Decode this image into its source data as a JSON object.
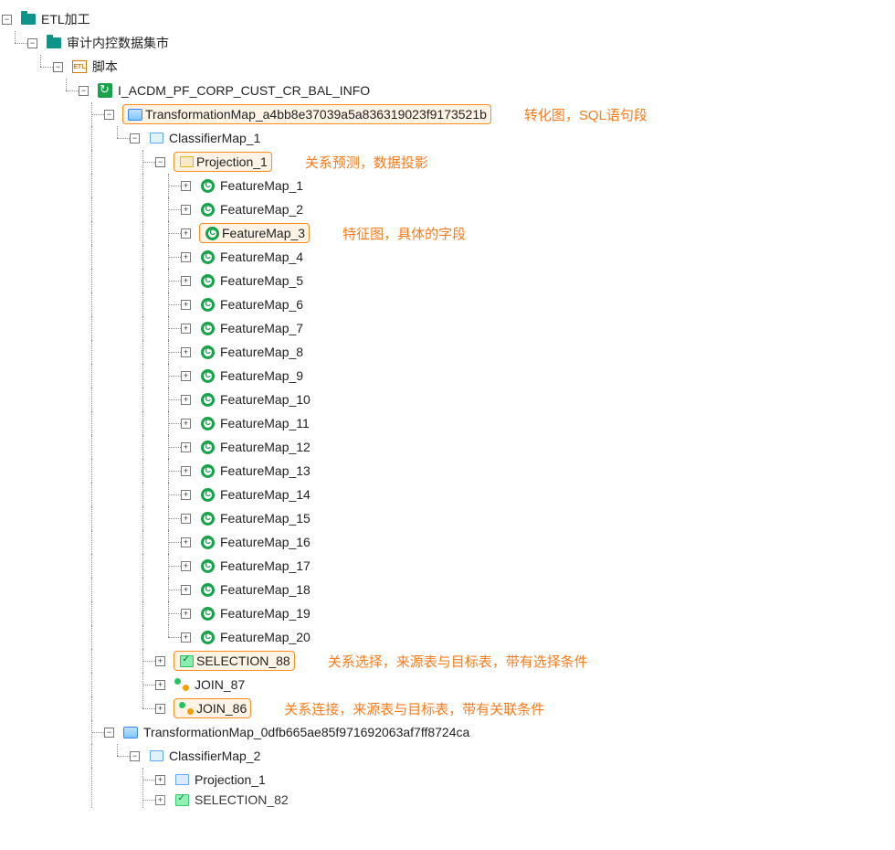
{
  "colors": {
    "annotation": "#ff7a1a",
    "highlight_border": "#ff8c1a",
    "highlight_bg": "#fff3e6",
    "tree_line": "#888888",
    "feature_icon": "#16a34a",
    "folder_icon": "#0d9488"
  },
  "annotations": {
    "transformation_map": "转化图，SQL语句段",
    "projection": "关系预测，数据投影",
    "feature_map": "特征图，具体的字段",
    "selection": "关系选择，来源表与目标表，带有选择条件",
    "join": "关系连接，来源表与目标表，带有关联条件"
  },
  "tree": {
    "root": "ETL加工",
    "level1": "审计内控数据集市",
    "level2": "脚本",
    "level2_icon_text": "ETL",
    "level3": "I_ACDM_PF_CORP_CUST_CR_BAL_INFO",
    "tmap1": "TransformationMap_a4bb8e37039a5a836319023f9173521b",
    "classifier1": "ClassifierMap_1",
    "projection1": "Projection_1",
    "features": [
      "FeatureMap_1",
      "FeatureMap_2",
      "FeatureMap_3",
      "FeatureMap_4",
      "FeatureMap_5",
      "FeatureMap_6",
      "FeatureMap_7",
      "FeatureMap_8",
      "FeatureMap_9",
      "FeatureMap_10",
      "FeatureMap_11",
      "FeatureMap_12",
      "FeatureMap_13",
      "FeatureMap_14",
      "FeatureMap_15",
      "FeatureMap_16",
      "FeatureMap_17",
      "FeatureMap_18",
      "FeatureMap_19",
      "FeatureMap_20"
    ],
    "highlighted_feature_index": 2,
    "selection88": "SELECTION_88",
    "join87": "JOIN_87",
    "join86": "JOIN_86",
    "tmap2": "TransformationMap_0dfb665ae85f971692063af7ff8724ca",
    "classifier2": "ClassifierMap_2",
    "projection2": "Projection_1",
    "selection82": "SELECTION_82"
  }
}
